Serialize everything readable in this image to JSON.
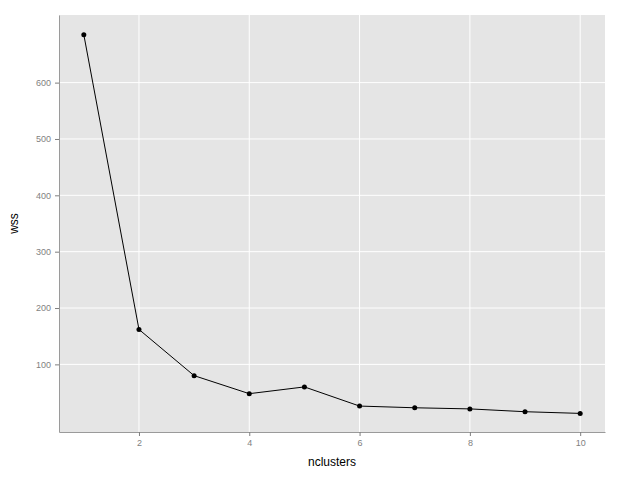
{
  "chart_data": {
    "type": "line",
    "x_label": "nclusters",
    "y_label": "wss",
    "x": [
      1,
      2,
      3,
      4,
      5,
      6,
      7,
      8,
      9,
      10
    ],
    "values": [
      685,
      162,
      80,
      48,
      60,
      26,
      23,
      21,
      16,
      13
    ],
    "color": "#000000",
    "marker": "circle",
    "xlim": [
      0.55,
      10.45
    ],
    "ylim": [
      -20,
      720
    ],
    "xticks": [
      2,
      4,
      6,
      8,
      10
    ],
    "yticks": [
      100,
      200,
      300,
      400,
      500,
      600
    ],
    "grid": true
  }
}
